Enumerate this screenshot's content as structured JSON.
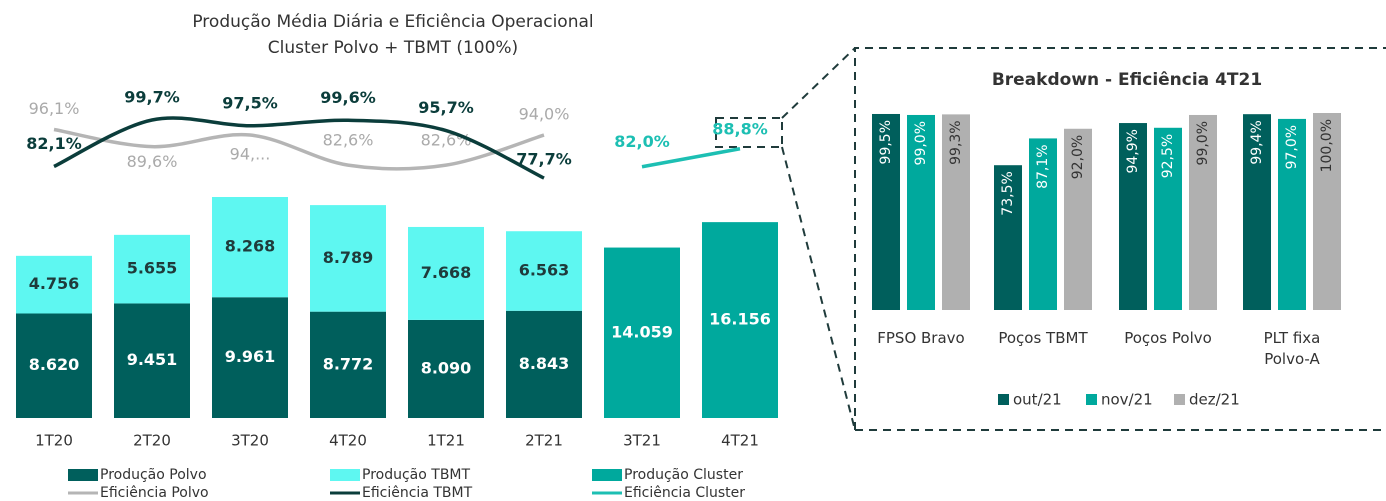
{
  "chart_data": [
    {
      "type": "combo",
      "title": "Produção Média Diária e Eficiência Operacional",
      "subtitle": "Cluster Polvo + TBMT (100%)",
      "categories": [
        "1T20",
        "2T20",
        "3T20",
        "4T20",
        "1T21",
        "2T21",
        "3T21",
        "4T21"
      ],
      "series": [
        {
          "name": "Produção Polvo",
          "type": "bar",
          "color": "#005f5c",
          "values": [
            8620,
            9451,
            9961,
            8772,
            8090,
            8843,
            null,
            null
          ],
          "value_labels": [
            "8.620",
            "9.451",
            "9.961",
            "8.772",
            "8.090",
            "8.843",
            null,
            null
          ]
        },
        {
          "name": "Produção TBMT",
          "type": "bar",
          "color": "#5ef7f1",
          "values": [
            4756,
            5655,
            8268,
            8789,
            7668,
            6563,
            null,
            null
          ],
          "value_labels": [
            "4.756",
            "5.655",
            "8.268",
            "8.789",
            "7.668",
            "6.563",
            null,
            null
          ]
        },
        {
          "name": "Produção Cluster",
          "type": "bar",
          "color": "#00a99d",
          "values": [
            null,
            null,
            null,
            null,
            null,
            null,
            14059,
            16156
          ],
          "value_labels": [
            null,
            null,
            null,
            null,
            null,
            null,
            "14.059",
            "16.156"
          ]
        },
        {
          "name": "Eficiência Polvo",
          "type": "line",
          "color": "#b5b5b5",
          "values": [
            96.1,
            89.6,
            94,
            82.6,
            82.6,
            94.0,
            null,
            null
          ],
          "value_labels": [
            "96,1%",
            "89,6%",
            "94,...",
            "82,6%",
            "82,6%",
            "94,0%",
            null,
            null
          ]
        },
        {
          "name": "Eficiência TBMT",
          "type": "line",
          "color": "#0b3d3b",
          "values": [
            82.1,
            99.7,
            97.5,
            99.6,
            95.7,
            77.7,
            null,
            null
          ],
          "value_labels": [
            "82,1%",
            "99,7%",
            "97,5%",
            "99,6%",
            "95,7%",
            "77,7%",
            null,
            null
          ]
        },
        {
          "name": "Eficiência Cluster",
          "type": "line",
          "color": "#1dbfb3",
          "values": [
            null,
            null,
            null,
            null,
            null,
            null,
            82.0,
            88.8
          ],
          "value_labels": [
            null,
            null,
            null,
            null,
            null,
            null,
            "82,0%",
            "88,8%"
          ]
        }
      ]
    },
    {
      "type": "bar",
      "title": "Breakdown - Eficiência 4T21",
      "categories": [
        "FPSO Bravo",
        "Poços TBMT",
        "Poços Polvo",
        "PLT fixa Polvo-A"
      ],
      "series": [
        {
          "name": "out/21",
          "color": "#005f5c",
          "values": [
            99.5,
            73.5,
            94.9,
            99.4
          ],
          "value_labels": [
            "99,5%",
            "73,5%",
            "94,9%",
            "99,4%"
          ]
        },
        {
          "name": "nov/21",
          "color": "#00a99d",
          "values": [
            99.0,
            87.1,
            92.5,
            97.0
          ],
          "value_labels": [
            "99,0%",
            "87,1%",
            "92,5%",
            "97,0%"
          ]
        },
        {
          "name": "dez/21",
          "color": "#b0b0b0",
          "values": [
            99.3,
            92.0,
            99.0,
            100.0
          ],
          "value_labels": [
            "99,3%",
            "92,0%",
            "99,0%",
            "100,0%"
          ]
        }
      ]
    }
  ]
}
